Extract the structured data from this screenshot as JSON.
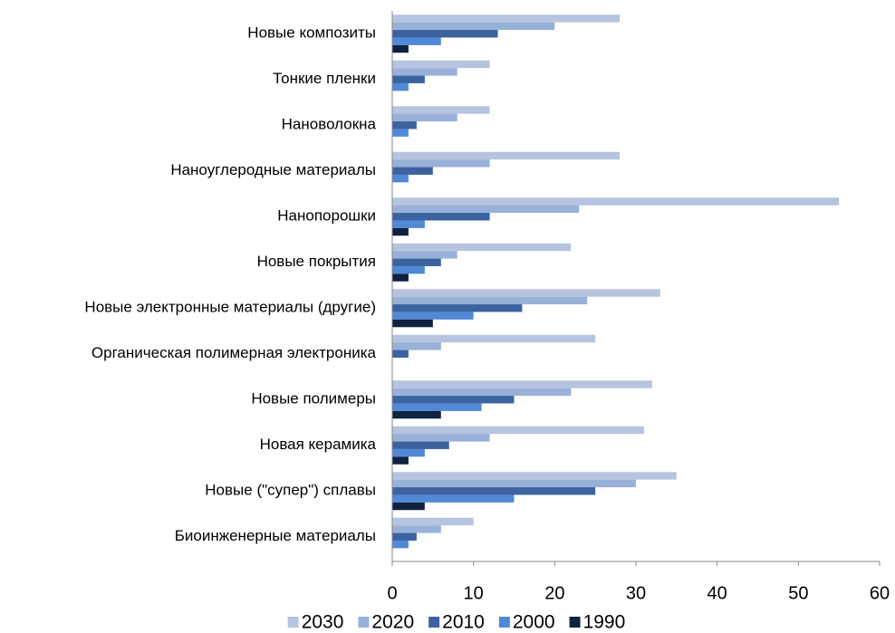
{
  "chart_data": {
    "type": "hbar",
    "categories": [
      "Новые композиты",
      "Тонкие пленки",
      "Нановолокна",
      "Наноуглеродные материалы",
      "Нанопорошки",
      "Новые покрытия",
      "Новые электронные материалы (другие)",
      "Органическая полимерная электроника",
      "Новые полимеры",
      "Новая керамика",
      "Новые (\"супер\") сплавы",
      "Биоинженерные материалы"
    ],
    "series": [
      {
        "name": "2030",
        "color": "#b6c4e0",
        "values": [
          28,
          12,
          12,
          28,
          55,
          22,
          33,
          25,
          32,
          31,
          35,
          10
        ]
      },
      {
        "name": "2020",
        "color": "#98b1d8",
        "values": [
          20,
          8,
          8,
          12,
          23,
          8,
          24,
          6,
          22,
          12,
          30,
          6
        ]
      },
      {
        "name": "2010",
        "color": "#3c63a0",
        "values": [
          13,
          4,
          3,
          5,
          12,
          6,
          16,
          2,
          15,
          7,
          25,
          3
        ]
      },
      {
        "name": "2000",
        "color": "#5189d6",
        "values": [
          6,
          2,
          2,
          2,
          4,
          4,
          10,
          0,
          11,
          4,
          15,
          2
        ]
      },
      {
        "name": "1990",
        "color": "#10223f",
        "values": [
          2,
          0,
          0,
          0,
          2,
          2,
          5,
          0,
          6,
          2,
          4,
          0
        ]
      }
    ],
    "xlim": [
      0,
      60
    ],
    "xticks": [
      0,
      10,
      20,
      30,
      40,
      50,
      60
    ],
    "legend": "bottom"
  }
}
